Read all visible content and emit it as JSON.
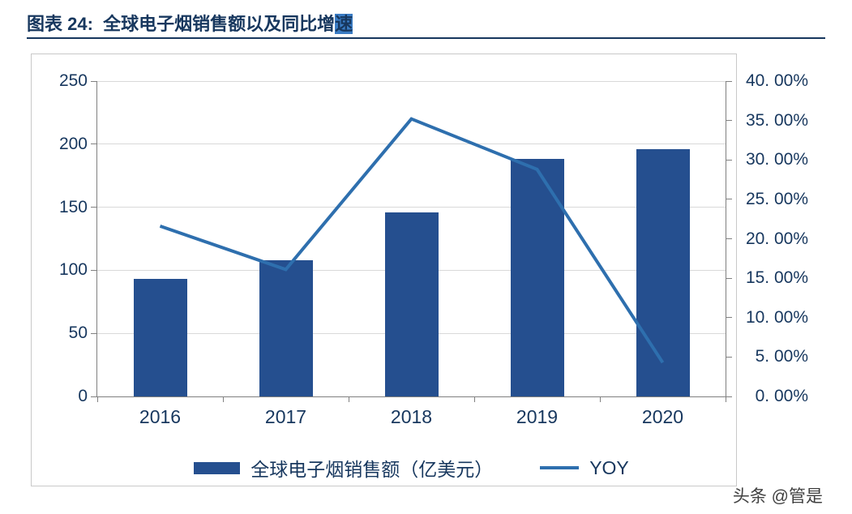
{
  "header": {
    "title_prefix": "图表 24:  全球电子烟销售额以及同比增",
    "title_highlight": "速"
  },
  "colors": {
    "bar": "#254f8f",
    "line": "#2e6fae",
    "title": "#17375e",
    "axis_text": "#17375e",
    "grid": "#d9d9d9",
    "axis_line": "#808080",
    "panel_border": "#c9c9c9",
    "highlight": "#3a7cc4",
    "watermark_text": "#404040"
  },
  "chart_data": {
    "type": "bar+line",
    "title": "图表 24: 全球电子烟销售额以及同比增速",
    "categories": [
      "2016",
      "2017",
      "2018",
      "2019",
      "2020"
    ],
    "series": [
      {
        "name": "全球电子烟销售额（亿美元）",
        "type": "bar",
        "axis": "left",
        "values": [
          93,
          108,
          146,
          188,
          196
        ]
      },
      {
        "name": "YOY",
        "type": "line",
        "axis": "right",
        "unit": "%",
        "values": [
          21.6,
          16.1,
          35.2,
          28.8,
          4.3
        ]
      }
    ],
    "left_axis": {
      "min": 0,
      "max": 250,
      "tick_labels": [
        "0",
        "50",
        "100",
        "150",
        "200",
        "250"
      ]
    },
    "right_axis": {
      "min": 0,
      "max": 40,
      "tick_labels": [
        "0. 00%",
        "5. 00%",
        "10. 00%",
        "15. 00%",
        "20. 00%",
        "25. 00%",
        "30. 00%",
        "35. 00%",
        "40. 00%"
      ]
    },
    "grid": true,
    "legend_position": "bottom"
  },
  "watermark": {
    "text": "头条 @管是"
  }
}
